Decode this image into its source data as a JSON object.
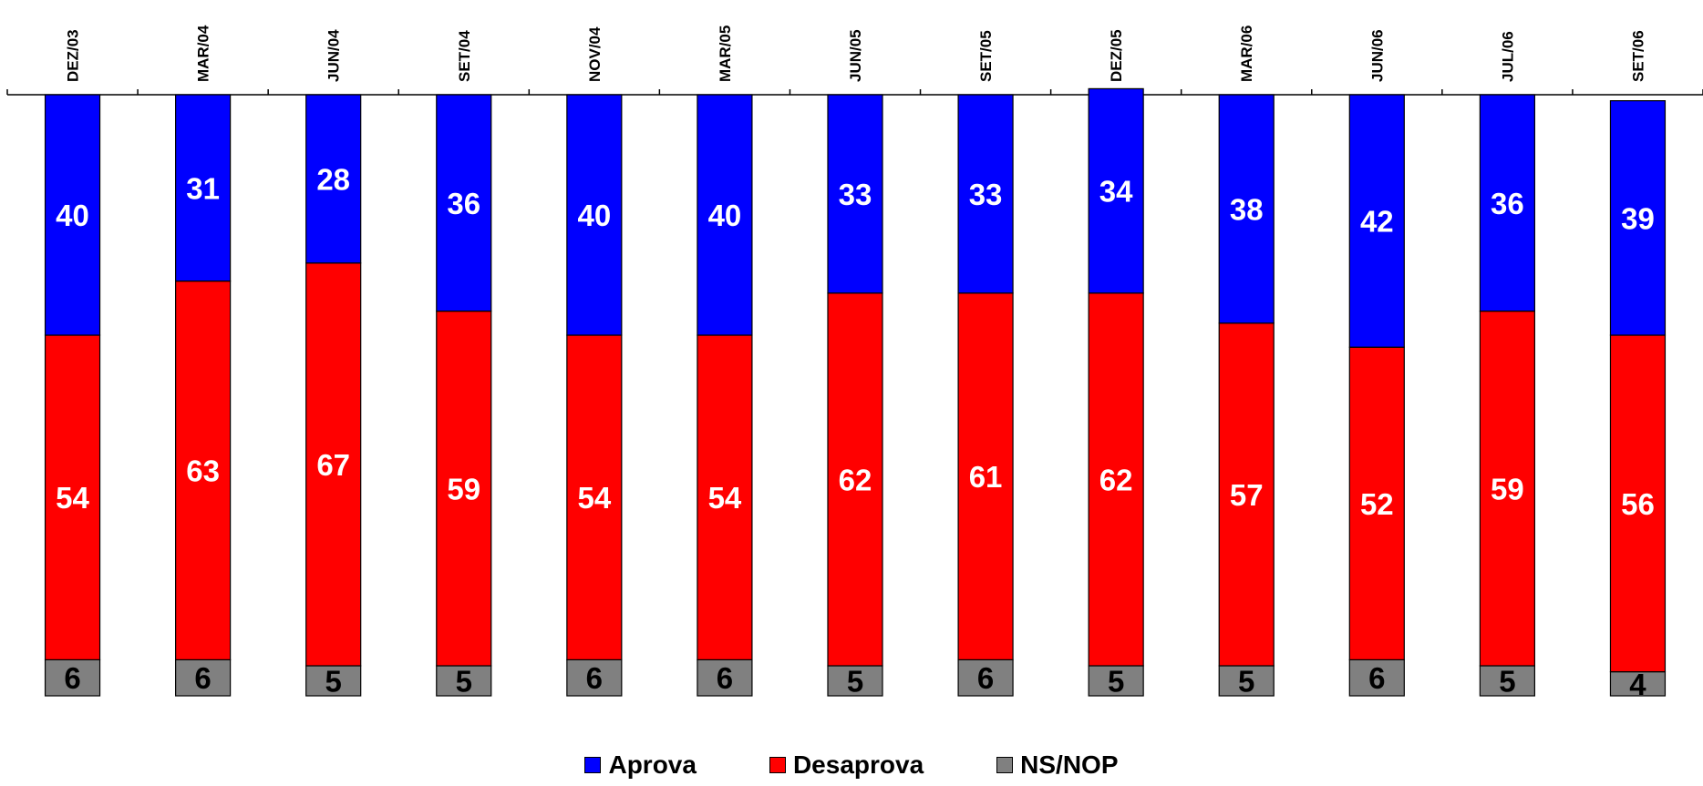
{
  "chart_data": {
    "type": "bar",
    "stacked": true,
    "categories": [
      "DEZ/03",
      "MAR/04",
      "JUN/04",
      "SET/04",
      "NOV/04",
      "MAR/05",
      "JUN/05",
      "SET/05",
      "DEZ/05",
      "MAR/06",
      "JUN/06",
      "JUL/06",
      "SET/06"
    ],
    "series": [
      {
        "name": "NS/NOP",
        "color": "#808080",
        "label_color": "#000000",
        "values": [
          6,
          6,
          5,
          5,
          6,
          6,
          5,
          6,
          5,
          5,
          6,
          5,
          4
        ]
      },
      {
        "name": "Desaprova",
        "color": "#ff0000",
        "label_color": "#ffffff",
        "values": [
          54,
          63,
          67,
          59,
          54,
          54,
          62,
          61,
          62,
          57,
          52,
          59,
          56
        ]
      },
      {
        "name": "Aprova",
        "color": "#0000ff",
        "label_color": "#ffffff",
        "values": [
          40,
          31,
          28,
          36,
          40,
          40,
          33,
          33,
          34,
          38,
          42,
          36,
          39
        ]
      }
    ],
    "ylim": [
      0,
      100
    ],
    "category_axis_position": "top",
    "legend_position": "bottom-center",
    "grid": false
  }
}
